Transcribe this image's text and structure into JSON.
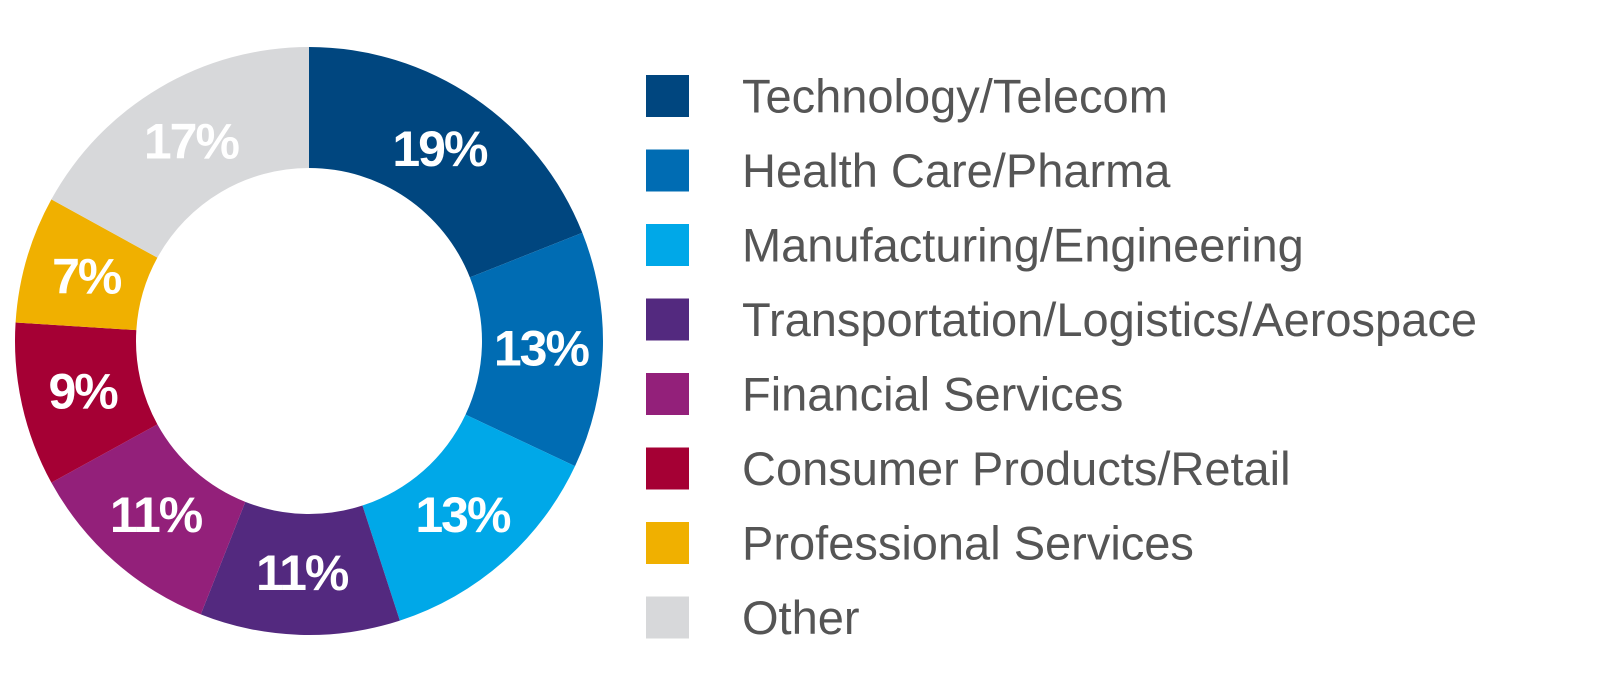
{
  "chart_data": {
    "type": "pie",
    "donut": true,
    "categories": [
      "Technology/Telecom",
      "Health Care/Pharma",
      "Manufacturing/Engineering",
      "Transportation/Logistics/Aerospace",
      "Financial Services",
      "Consumer Products/Retail",
      "Professional Services",
      "Other"
    ],
    "values": [
      19,
      13,
      13,
      11,
      11,
      9,
      7,
      17
    ],
    "value_labels": [
      "19%",
      "13%",
      "13%",
      "11%",
      "11%",
      "9%",
      "7%",
      "17%"
    ],
    "colors": [
      "#00467f",
      "#006cb3",
      "#00a8e8",
      "#53297f",
      "#93207a",
      "#a50034",
      "#f0b000",
      "#d7d8da"
    ],
    "legend": "right"
  }
}
